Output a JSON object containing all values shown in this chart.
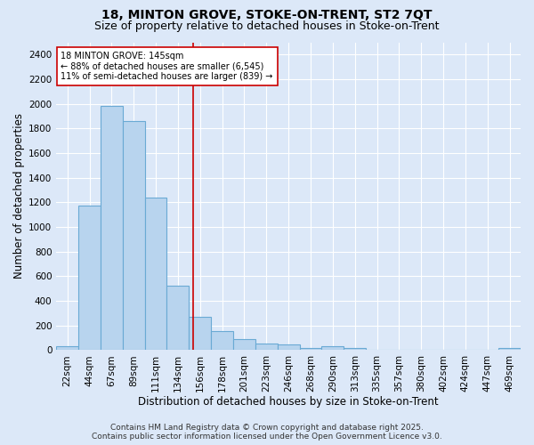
{
  "title1": "18, MINTON GROVE, STOKE-ON-TRENT, ST2 7QT",
  "title2": "Size of property relative to detached houses in Stoke-on-Trent",
  "xlabel": "Distribution of detached houses by size in Stoke-on-Trent",
  "ylabel": "Number of detached properties",
  "categories": [
    "22sqm",
    "44sqm",
    "67sqm",
    "89sqm",
    "111sqm",
    "134sqm",
    "156sqm",
    "178sqm",
    "201sqm",
    "223sqm",
    "246sqm",
    "268sqm",
    "290sqm",
    "313sqm",
    "335sqm",
    "357sqm",
    "380sqm",
    "402sqm",
    "424sqm",
    "447sqm",
    "469sqm"
  ],
  "values": [
    30,
    1170,
    1980,
    1860,
    1240,
    520,
    270,
    155,
    90,
    50,
    45,
    20,
    30,
    15,
    0,
    5,
    0,
    0,
    0,
    0,
    15
  ],
  "bar_color": "#b8d4ee",
  "bar_edge_color": "#6aaad4",
  "background_color": "#dce8f8",
  "grid_color": "#ffffff",
  "vline_x_index": 5.68,
  "vline_color": "#cc0000",
  "annotation_line1": "18 MINTON GROVE: 145sqm",
  "annotation_line2": "← 88% of detached houses are smaller (6,545)",
  "annotation_line3": "11% of semi-detached houses are larger (839) →",
  "annotation_box_color": "#ffffff",
  "annotation_box_edge": "#cc0000",
  "ylim": [
    0,
    2500
  ],
  "yticks": [
    0,
    200,
    400,
    600,
    800,
    1000,
    1200,
    1400,
    1600,
    1800,
    2000,
    2200,
    2400
  ],
  "footer1": "Contains HM Land Registry data © Crown copyright and database right 2025.",
  "footer2": "Contains public sector information licensed under the Open Government Licence v3.0.",
  "title_fontsize": 10,
  "subtitle_fontsize": 9,
  "axis_label_fontsize": 8.5,
  "tick_fontsize": 7.5,
  "annot_fontsize": 7,
  "footer_fontsize": 6.5
}
